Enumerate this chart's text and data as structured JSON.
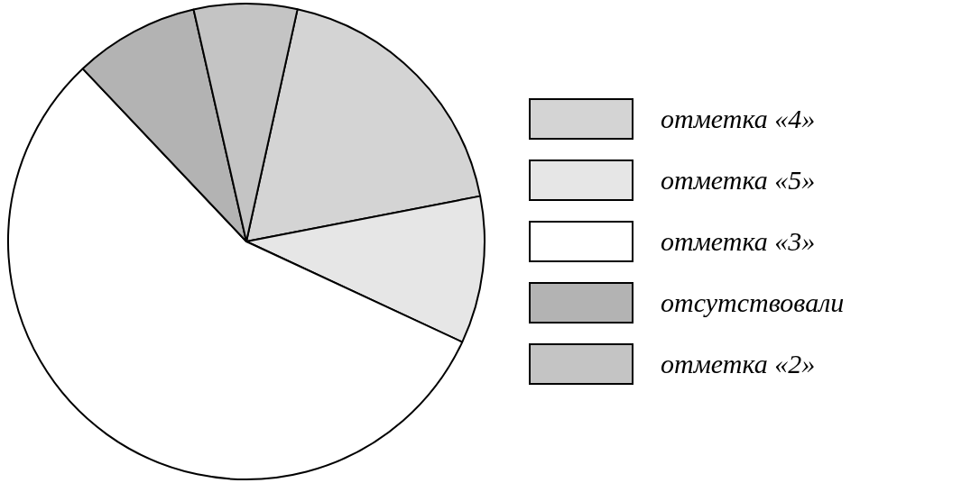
{
  "chart_data": {
    "type": "pie",
    "categories": [
      "отметка «4»",
      "отметка «5»",
      "отметка «3»",
      "отсутствовали",
      "отметка «2»"
    ],
    "values": [
      18.5,
      10,
      56,
      8.5,
      7
    ],
    "colors": [
      "#d4d4d4",
      "#e6e6e6",
      "#ffffff",
      "#b3b3b3",
      "#c4c4c4"
    ],
    "legend": "right"
  }
}
